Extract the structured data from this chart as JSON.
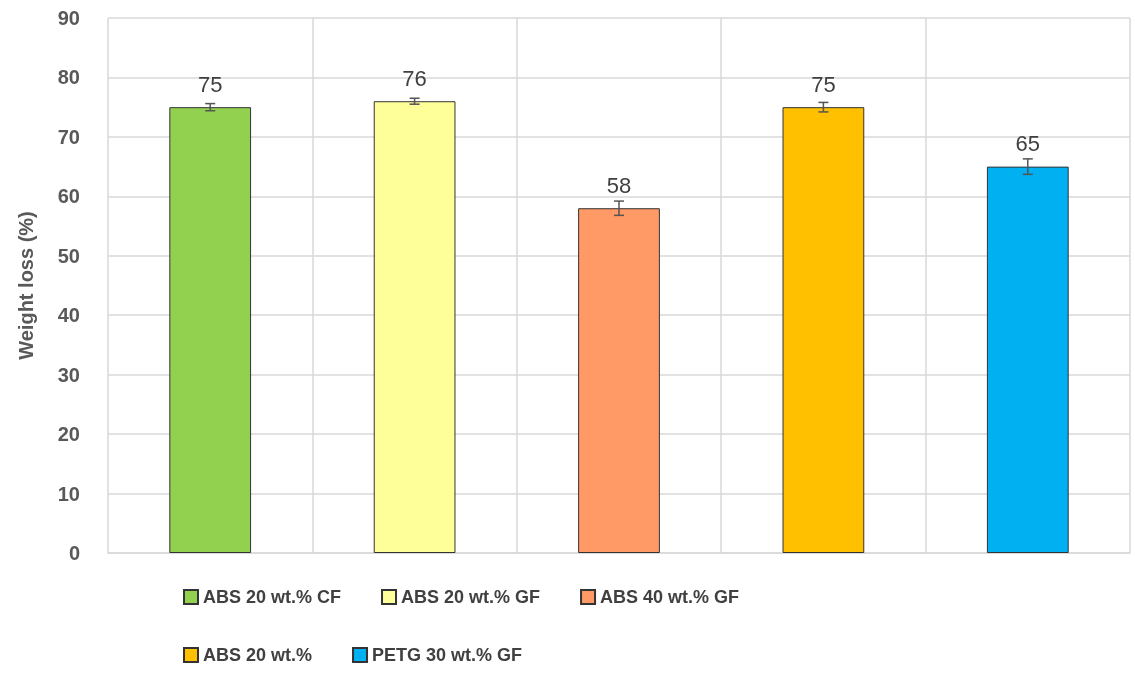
{
  "chart_data": {
    "type": "bar",
    "ylabel": "Weight loss (%)",
    "categories": [
      null,
      null,
      null,
      null,
      null
    ],
    "series": [
      {
        "name": "ABS 20 wt.% CF",
        "color": "#92d050",
        "values": [
          75,
          null,
          null,
          null,
          null
        ],
        "errors": [
          0.6,
          null,
          null,
          null,
          null
        ]
      },
      {
        "name": "ABS 20 wt.% GF",
        "color": "#ffff99",
        "values": [
          null,
          76,
          null,
          null,
          null
        ],
        "errors": [
          null,
          0.5,
          null,
          null,
          null
        ]
      },
      {
        "name": "ABS 40 wt.% GF",
        "color": "#ff9966",
        "values": [
          null,
          null,
          58,
          null,
          null
        ],
        "errors": [
          null,
          null,
          1.2,
          null,
          null
        ]
      },
      {
        "name": "ABS 20 wt.%",
        "color": "#ffc000",
        "values": [
          null,
          null,
          null,
          75,
          null
        ],
        "errors": [
          null,
          null,
          null,
          0.8,
          null
        ]
      },
      {
        "name": "PETG 30 wt.% GF",
        "color": "#00b0f0",
        "values": [
          null,
          null,
          null,
          null,
          65
        ],
        "errors": [
          null,
          null,
          null,
          null,
          1.3
        ]
      }
    ],
    "ylim": [
      0,
      90
    ],
    "yticks": [
      0,
      10,
      20,
      30,
      40,
      50,
      60,
      70,
      80,
      90
    ],
    "grid": true,
    "legend": "bottom",
    "data_labels": true
  }
}
